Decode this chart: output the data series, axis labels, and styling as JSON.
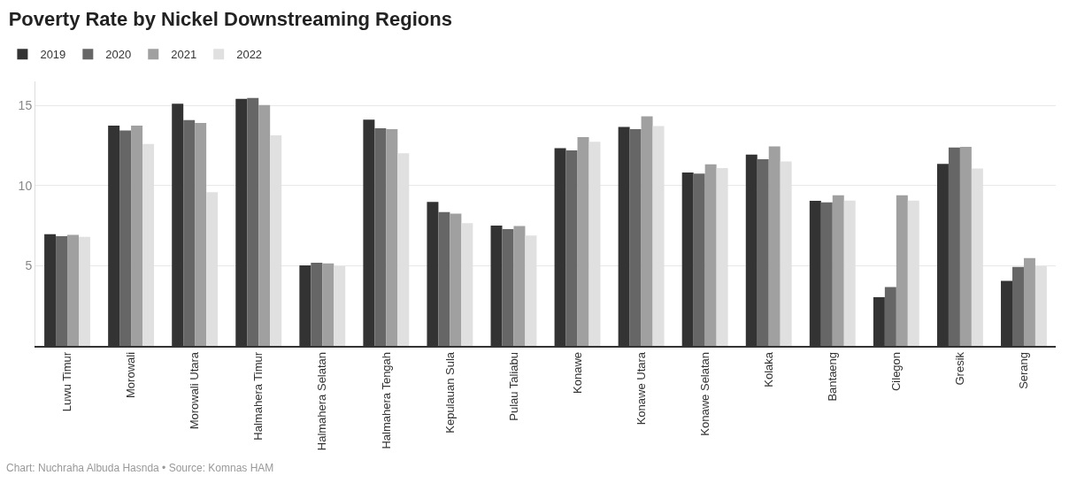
{
  "chart_data": {
    "type": "bar",
    "title": "Poverty Rate by Nickel Downstreaming Regions",
    "categories": [
      "Luwu Timur",
      "Morowali",
      "Morowali Utara",
      "Halmahera Timur",
      "Halmahera Selatan",
      "Halmahera Tengah",
      "Kepulauan Sula",
      "Pulau Taliabu",
      "Konawe",
      "Konawe Utara",
      "Konawe Selatan",
      "Kolaka",
      "Bantaeng",
      "Cilegon",
      "Gresik",
      "Serang"
    ],
    "series": [
      {
        "name": "2019",
        "color": "#333333",
        "values": [
          6.97,
          13.74,
          15.1,
          15.41,
          5.02,
          14.12,
          8.98,
          7.5,
          12.33,
          13.66,
          10.82,
          11.94,
          9.05,
          3.04,
          11.36,
          4.06
        ]
      },
      {
        "name": "2020",
        "color": "#666666",
        "values": [
          6.84,
          13.44,
          14.08,
          15.46,
          5.19,
          13.57,
          8.35,
          7.28,
          12.19,
          13.52,
          10.75,
          11.65,
          8.95,
          3.67,
          12.38,
          4.93
        ]
      },
      {
        "name": "2021",
        "color": "#a0a0a0",
        "values": [
          6.92,
          13.74,
          13.91,
          15.03,
          5.15,
          13.52,
          8.25,
          7.48,
          13.03,
          14.32,
          11.33,
          12.45,
          9.39,
          9.39,
          12.41,
          5.48
        ]
      },
      {
        "name": "2022",
        "color": "#e0e0e0",
        "values": [
          6.8,
          12.59,
          9.59,
          13.13,
          4.98,
          12.01,
          7.65,
          6.89,
          12.74,
          13.72,
          11.09,
          11.51,
          9.06,
          9.06,
          11.07,
          4.98
        ]
      }
    ],
    "ylim": [
      0,
      16.5
    ],
    "yticks": [
      5,
      10,
      15
    ],
    "grid": "y",
    "legend": "top left",
    "annotations": [
      "Chart: Nuchraha Albuda Hasnda • Source: Komnas HAM"
    ]
  }
}
